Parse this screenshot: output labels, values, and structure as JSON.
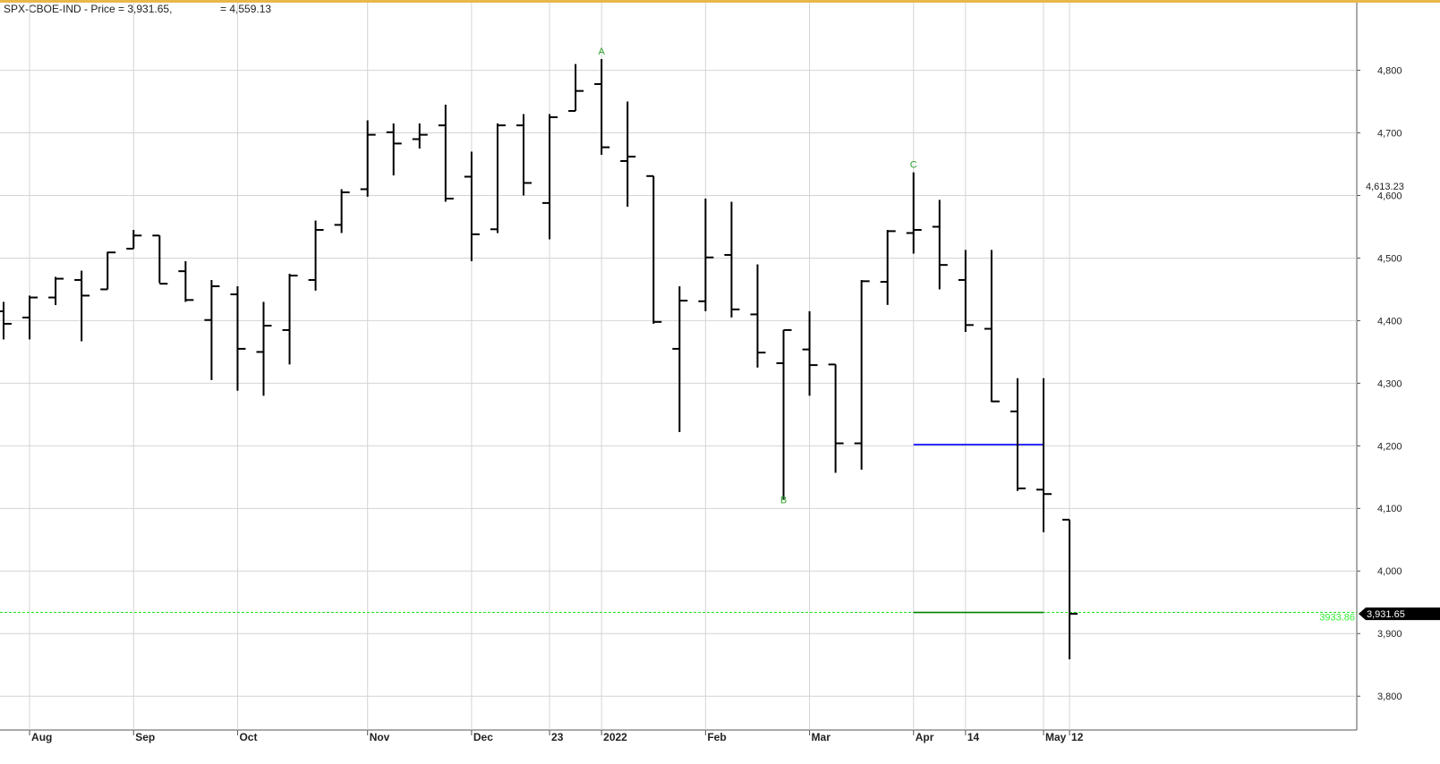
{
  "chart_data": {
    "type": "ohlc",
    "title": "SPX-CBOE-IND - Price = 3,931.65,",
    "subtitle": "= 4,559.13",
    "open": [
      4415,
      4405,
      4437,
      4465,
      4450,
      4515,
      4536,
      4479,
      4401,
      4442,
      4350,
      4385,
      4465,
      4553,
      4610,
      4701,
      4690,
      4712,
      4630,
      4546,
      4712,
      4588,
      4735,
      4778,
      4655,
      4631,
      4355,
      4431,
      4505,
      4410,
      4332,
      4354,
      4330,
      4204,
      4462,
      4540,
      4550,
      4465,
      4387,
      4255,
      4130,
      4082
    ],
    "high": [
      4430,
      4440,
      4470,
      4480,
      4510,
      4545,
      4536,
      4495,
      4465,
      4455,
      4430,
      4475,
      4560,
      4610,
      4720,
      4715,
      4715,
      4745,
      4670,
      4715,
      4730,
      4730,
      4810,
      4818,
      4750,
      4631,
      4455,
      4595,
      4590,
      4490,
      4385,
      4415,
      4330,
      4465,
      4545,
      4637,
      4593,
      4513,
      4513,
      4308,
      4308,
      4082
    ],
    "low": [
      4370,
      4370,
      4425,
      4367,
      4450,
      4515,
      4460,
      4430,
      4305,
      4288,
      4280,
      4330,
      4448,
      4540,
      4598,
      4632,
      4675,
      4590,
      4495,
      4540,
      4600,
      4530,
      4735,
      4665,
      4582,
      4395,
      4222,
      4415,
      4405,
      4325,
      4115,
      4280,
      4157,
      4162,
      4425,
      4507,
      4450,
      4382,
      4270,
      4128,
      4062,
      3859
    ],
    "close": [
      4395,
      4437,
      4467,
      4440,
      4509,
      4536,
      4459,
      4433,
      4455,
      4355,
      4392,
      4472,
      4545,
      4605,
      4697,
      4683,
      4697,
      4595,
      4538,
      4712,
      4620,
      4725,
      4767,
      4677,
      4662,
      4398,
      4432,
      4501,
      4418,
      4349,
      4385,
      4329,
      4204,
      4463,
      4543,
      4545,
      4489,
      4393,
      4271,
      4132,
      4123,
      3931.65
    ],
    "xticks": [
      {
        "value": 1,
        "label": "Aug"
      },
      {
        "value": 5,
        "label": "Sep"
      },
      {
        "value": 9,
        "label": "Oct"
      },
      {
        "value": 14,
        "label": "Nov"
      },
      {
        "value": 18,
        "label": "Dec"
      },
      {
        "value": 21,
        "label": "23"
      },
      {
        "value": 23,
        "label": "2022"
      },
      {
        "value": 27,
        "label": "Feb"
      },
      {
        "value": 31,
        "label": "Mar"
      },
      {
        "value": 35,
        "label": "Apr"
      },
      {
        "value": 37,
        "label": "14"
      },
      {
        "value": 40,
        "label": "May"
      },
      {
        "value": 41,
        "label": "12"
      }
    ],
    "ylim": [
      3746,
      4908
    ],
    "yticks": [
      {
        "value": 3800,
        "label": "3,800"
      },
      {
        "value": 3900,
        "label": "3,900"
      },
      {
        "value": 4000,
        "label": "4,000"
      },
      {
        "value": 4100,
        "label": "4,100"
      },
      {
        "value": 4200,
        "label": "4,200"
      },
      {
        "value": 4300,
        "label": "4,300"
      },
      {
        "value": 4400,
        "label": "4,400"
      },
      {
        "value": 4500,
        "label": "4,500"
      },
      {
        "value": 4600,
        "label": "4,600"
      },
      {
        "value": 4700,
        "label": "4,700"
      },
      {
        "value": 4800,
        "label": "4,800"
      }
    ],
    "grid": true,
    "color": "#000000",
    "annotations": [
      {
        "text": "A",
        "bar": 23,
        "position": "above"
      },
      {
        "text": "B",
        "bar": 30,
        "position": "below"
      },
      {
        "text": "C",
        "bar": 35,
        "position": "above"
      }
    ],
    "annotation_color": "#2ca02c",
    "levels": [
      {
        "value": 4202,
        "color": "#0000ff",
        "from": 35,
        "to": 40
      },
      {
        "value": 3933.86,
        "label": "3933.86",
        "color": "#008000",
        "from": 35,
        "to": 40,
        "extend": true
      }
    ],
    "axis_markers": [
      {
        "value": 4613.23,
        "label": "4,613.23"
      }
    ],
    "last_price": {
      "value": 3931.65,
      "label": "3,931.65"
    }
  }
}
